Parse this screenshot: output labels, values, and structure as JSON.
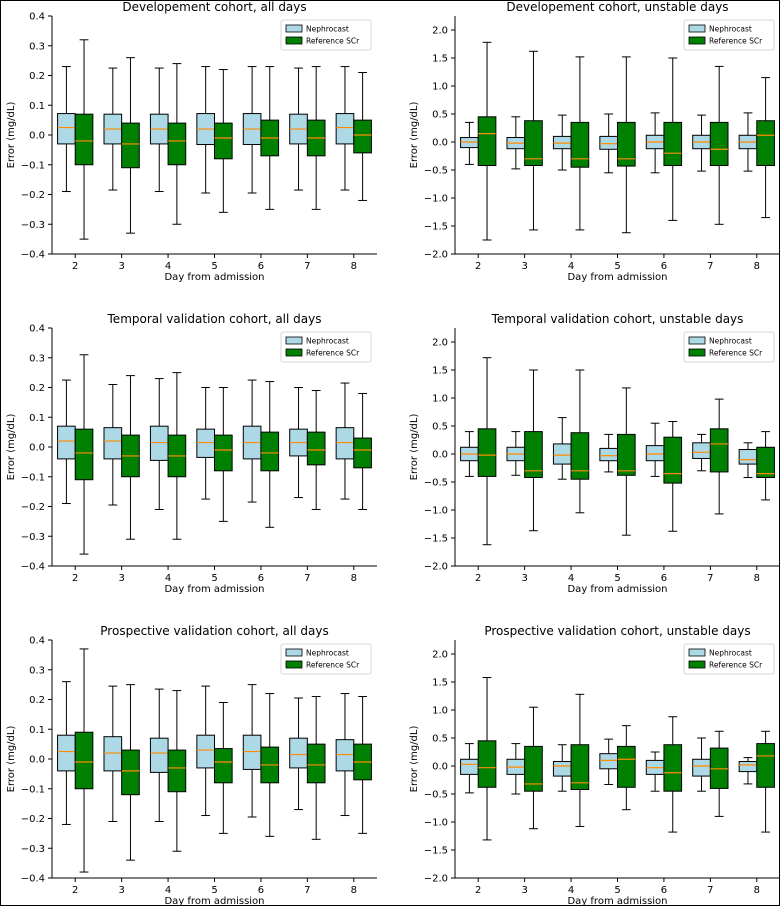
{
  "colors": {
    "nephrocast": "#add8e6",
    "reference": "#008000",
    "median": "#ff8c00",
    "axis": "#000000"
  },
  "legend_labels": [
    "Nephrocast",
    "Reference SCr"
  ],
  "chart_data": [
    {
      "type": "boxplot",
      "title": "Developement cohort, all days",
      "xlabel": "Day from admission",
      "ylabel": "Error (mg/dL)",
      "ylim": [
        -0.4,
        0.4
      ],
      "yticks": [
        -0.4,
        -0.3,
        -0.2,
        -0.1,
        0.0,
        0.1,
        0.2,
        0.3,
        0.4
      ],
      "categories": [
        "2",
        "3",
        "4",
        "5",
        "6",
        "7",
        "8"
      ],
      "legend_position": "top-right",
      "series": [
        {
          "name": "Nephrocast",
          "boxes": [
            {
              "whislo": -0.19,
              "q1": -0.03,
              "med": 0.025,
              "q3": 0.072,
              "whishi": 0.23
            },
            {
              "whislo": -0.185,
              "q1": -0.03,
              "med": 0.02,
              "q3": 0.07,
              "whishi": 0.225
            },
            {
              "whislo": -0.19,
              "q1": -0.03,
              "med": 0.02,
              "q3": 0.07,
              "whishi": 0.225
            },
            {
              "whislo": -0.195,
              "q1": -0.032,
              "med": 0.02,
              "q3": 0.072,
              "whishi": 0.23
            },
            {
              "whislo": -0.195,
              "q1": -0.032,
              "med": 0.02,
              "q3": 0.072,
              "whishi": 0.23
            },
            {
              "whislo": -0.185,
              "q1": -0.03,
              "med": 0.02,
              "q3": 0.07,
              "whishi": 0.225
            },
            {
              "whislo": -0.185,
              "q1": -0.03,
              "med": 0.025,
              "q3": 0.072,
              "whishi": 0.23
            }
          ]
        },
        {
          "name": "Reference SCr",
          "boxes": [
            {
              "whislo": -0.35,
              "q1": -0.1,
              "med": -0.02,
              "q3": 0.07,
              "whishi": 0.32
            },
            {
              "whislo": -0.33,
              "q1": -0.11,
              "med": -0.03,
              "q3": 0.04,
              "whishi": 0.26
            },
            {
              "whislo": -0.3,
              "q1": -0.1,
              "med": -0.02,
              "q3": 0.04,
              "whishi": 0.24
            },
            {
              "whislo": -0.26,
              "q1": -0.08,
              "med": -0.01,
              "q3": 0.04,
              "whishi": 0.22
            },
            {
              "whislo": -0.25,
              "q1": -0.07,
              "med": -0.01,
              "q3": 0.05,
              "whishi": 0.23
            },
            {
              "whislo": -0.25,
              "q1": -0.07,
              "med": -0.01,
              "q3": 0.05,
              "whishi": 0.23
            },
            {
              "whislo": -0.22,
              "q1": -0.06,
              "med": 0.0,
              "q3": 0.05,
              "whishi": 0.21
            }
          ]
        }
      ]
    },
    {
      "type": "boxplot",
      "title": "Developement cohort, unstable days",
      "xlabel": "Day from admission",
      "ylabel": "Error (mg/dL)",
      "ylim": [
        -2.0,
        2.25
      ],
      "yticks": [
        -2.0,
        -1.5,
        -1.0,
        -0.5,
        0.0,
        0.5,
        1.0,
        1.5,
        2.0
      ],
      "categories": [
        "2",
        "3",
        "4",
        "5",
        "6",
        "7",
        "8"
      ],
      "legend_position": "top-right",
      "series": [
        {
          "name": "Nephrocast",
          "boxes": [
            {
              "whislo": -0.4,
              "q1": -0.1,
              "med": 0.0,
              "q3": 0.08,
              "whishi": 0.35
            },
            {
              "whislo": -0.48,
              "q1": -0.12,
              "med": -0.02,
              "q3": 0.08,
              "whishi": 0.45
            },
            {
              "whislo": -0.5,
              "q1": -0.12,
              "med": -0.02,
              "q3": 0.1,
              "whishi": 0.48
            },
            {
              "whislo": -0.55,
              "q1": -0.13,
              "med": -0.03,
              "q3": 0.1,
              "whishi": 0.5
            },
            {
              "whislo": -0.55,
              "q1": -0.12,
              "med": 0.0,
              "q3": 0.12,
              "whishi": 0.52
            },
            {
              "whislo": -0.52,
              "q1": -0.12,
              "med": 0.0,
              "q3": 0.12,
              "whishi": 0.48
            },
            {
              "whislo": -0.52,
              "q1": -0.12,
              "med": 0.0,
              "q3": 0.12,
              "whishi": 0.52
            }
          ]
        },
        {
          "name": "Reference SCr",
          "boxes": [
            {
              "whislo": -1.75,
              "q1": -0.42,
              "med": 0.15,
              "q3": 0.45,
              "whishi": 1.78
            },
            {
              "whislo": -1.57,
              "q1": -0.42,
              "med": -0.3,
              "q3": 0.38,
              "whishi": 1.62
            },
            {
              "whislo": -1.57,
              "q1": -0.45,
              "med": -0.3,
              "q3": 0.35,
              "whishi": 1.52
            },
            {
              "whislo": -1.62,
              "q1": -0.43,
              "med": -0.3,
              "q3": 0.35,
              "whishi": 1.52
            },
            {
              "whislo": -1.4,
              "q1": -0.42,
              "med": -0.2,
              "q3": 0.35,
              "whishi": 1.5
            },
            {
              "whislo": -1.47,
              "q1": -0.42,
              "med": -0.13,
              "q3": 0.35,
              "whishi": 1.35
            },
            {
              "whislo": -1.35,
              "q1": -0.42,
              "med": 0.12,
              "q3": 0.38,
              "whishi": 1.15
            }
          ]
        }
      ]
    },
    {
      "type": "boxplot",
      "title": "Temporal validation cohort, all days",
      "xlabel": "Day from admission",
      "ylabel": "Error (mg/dL)",
      "ylim": [
        -0.4,
        0.4
      ],
      "yticks": [
        -0.4,
        -0.3,
        -0.2,
        -0.1,
        0.0,
        0.1,
        0.2,
        0.3,
        0.4
      ],
      "categories": [
        "2",
        "3",
        "4",
        "5",
        "6",
        "7",
        "8"
      ],
      "legend_position": "top-right",
      "series": [
        {
          "name": "Nephrocast",
          "boxes": [
            {
              "whislo": -0.19,
              "q1": -0.04,
              "med": 0.02,
              "q3": 0.07,
              "whishi": 0.225
            },
            {
              "whislo": -0.195,
              "q1": -0.04,
              "med": 0.02,
              "q3": 0.065,
              "whishi": 0.21
            },
            {
              "whislo": -0.21,
              "q1": -0.045,
              "med": 0.015,
              "q3": 0.07,
              "whishi": 0.23
            },
            {
              "whislo": -0.175,
              "q1": -0.035,
              "med": 0.015,
              "q3": 0.06,
              "whishi": 0.2
            },
            {
              "whislo": -0.185,
              "q1": -0.04,
              "med": 0.015,
              "q3": 0.07,
              "whishi": 0.225
            },
            {
              "whislo": -0.17,
              "q1": -0.03,
              "med": 0.015,
              "q3": 0.06,
              "whishi": 0.2
            },
            {
              "whislo": -0.175,
              "q1": -0.04,
              "med": 0.015,
              "q3": 0.065,
              "whishi": 0.215
            }
          ]
        },
        {
          "name": "Reference SCr",
          "boxes": [
            {
              "whislo": -0.36,
              "q1": -0.11,
              "med": -0.02,
              "q3": 0.06,
              "whishi": 0.31
            },
            {
              "whislo": -0.31,
              "q1": -0.1,
              "med": -0.03,
              "q3": 0.04,
              "whishi": 0.24
            },
            {
              "whislo": -0.31,
              "q1": -0.1,
              "med": -0.03,
              "q3": 0.04,
              "whishi": 0.25
            },
            {
              "whislo": -0.25,
              "q1": -0.08,
              "med": -0.01,
              "q3": 0.04,
              "whishi": 0.2
            },
            {
              "whislo": -0.27,
              "q1": -0.08,
              "med": -0.02,
              "q3": 0.05,
              "whishi": 0.22
            },
            {
              "whislo": -0.21,
              "q1": -0.06,
              "med": -0.01,
              "q3": 0.05,
              "whishi": 0.19
            },
            {
              "whislo": -0.21,
              "q1": -0.07,
              "med": -0.01,
              "q3": 0.03,
              "whishi": 0.18
            }
          ]
        }
      ]
    },
    {
      "type": "boxplot",
      "title": "Temporal validation cohort, unstable days",
      "xlabel": "Day from admission",
      "ylabel": "Error (mg/dL)",
      "ylim": [
        -2.0,
        2.25
      ],
      "yticks": [
        -2.0,
        -1.5,
        -1.0,
        -0.5,
        0.0,
        0.5,
        1.0,
        1.5,
        2.0
      ],
      "categories": [
        "2",
        "3",
        "4",
        "5",
        "6",
        "7",
        "8"
      ],
      "legend_position": "top-right",
      "series": [
        {
          "name": "Nephrocast",
          "boxes": [
            {
              "whislo": -0.4,
              "q1": -0.12,
              "med": 0.0,
              "q3": 0.12,
              "whishi": 0.4
            },
            {
              "whislo": -0.38,
              "q1": -0.12,
              "med": 0.0,
              "q3": 0.12,
              "whishi": 0.4
            },
            {
              "whislo": -0.45,
              "q1": -0.18,
              "med": -0.02,
              "q3": 0.18,
              "whishi": 0.65
            },
            {
              "whislo": -0.32,
              "q1": -0.12,
              "med": -0.03,
              "q3": 0.1,
              "whishi": 0.35
            },
            {
              "whislo": -0.4,
              "q1": -0.12,
              "med": 0.0,
              "q3": 0.15,
              "whishi": 0.55
            },
            {
              "whislo": -0.3,
              "q1": -0.08,
              "med": 0.03,
              "q3": 0.2,
              "whishi": 0.35
            },
            {
              "whislo": -0.42,
              "q1": -0.18,
              "med": -0.1,
              "q3": 0.08,
              "whishi": 0.2
            }
          ]
        },
        {
          "name": "Reference SCr",
          "boxes": [
            {
              "whislo": -1.62,
              "q1": -0.4,
              "med": -0.02,
              "q3": 0.45,
              "whishi": 1.72
            },
            {
              "whislo": -1.37,
              "q1": -0.42,
              "med": -0.3,
              "q3": 0.4,
              "whishi": 1.5
            },
            {
              "whislo": -1.05,
              "q1": -0.45,
              "med": -0.3,
              "q3": 0.38,
              "whishi": 1.5
            },
            {
              "whislo": -1.45,
              "q1": -0.38,
              "med": -0.3,
              "q3": 0.35,
              "whishi": 1.18
            },
            {
              "whislo": -1.38,
              "q1": -0.52,
              "med": -0.35,
              "q3": 0.3,
              "whishi": 0.58
            },
            {
              "whislo": -1.07,
              "q1": -0.32,
              "med": 0.18,
              "q3": 0.45,
              "whishi": 0.98
            },
            {
              "whislo": -0.82,
              "q1": -0.42,
              "med": -0.35,
              "q3": 0.12,
              "whishi": 0.4
            }
          ]
        }
      ]
    },
    {
      "type": "boxplot",
      "title": "Prospective validation cohort, all days",
      "xlabel": "Day from admission",
      "ylabel": "Error (mg/dL)",
      "ylim": [
        -0.4,
        0.4
      ],
      "yticks": [
        -0.4,
        -0.3,
        -0.2,
        -0.1,
        0.0,
        0.1,
        0.2,
        0.3,
        0.4
      ],
      "categories": [
        "2",
        "3",
        "4",
        "5",
        "6",
        "7",
        "8"
      ],
      "legend_position": "top-right",
      "series": [
        {
          "name": "Nephrocast",
          "boxes": [
            {
              "whislo": -0.22,
              "q1": -0.04,
              "med": 0.025,
              "q3": 0.08,
              "whishi": 0.26
            },
            {
              "whislo": -0.21,
              "q1": -0.04,
              "med": 0.02,
              "q3": 0.075,
              "whishi": 0.245
            },
            {
              "whislo": -0.21,
              "q1": -0.045,
              "med": 0.02,
              "q3": 0.07,
              "whishi": 0.235
            },
            {
              "whislo": -0.19,
              "q1": -0.03,
              "med": 0.03,
              "q3": 0.08,
              "whishi": 0.245
            },
            {
              "whislo": -0.195,
              "q1": -0.035,
              "med": 0.025,
              "q3": 0.08,
              "whishi": 0.25
            },
            {
              "whislo": -0.17,
              "q1": -0.03,
              "med": 0.015,
              "q3": 0.07,
              "whishi": 0.205
            },
            {
              "whislo": -0.19,
              "q1": -0.04,
              "med": 0.015,
              "q3": 0.065,
              "whishi": 0.22
            }
          ]
        },
        {
          "name": "Reference SCr",
          "boxes": [
            {
              "whislo": -0.38,
              "q1": -0.1,
              "med": -0.01,
              "q3": 0.09,
              "whishi": 0.37
            },
            {
              "whislo": -0.34,
              "q1": -0.12,
              "med": -0.04,
              "q3": 0.03,
              "whishi": 0.25
            },
            {
              "whislo": -0.31,
              "q1": -0.11,
              "med": -0.03,
              "q3": 0.03,
              "whishi": 0.23
            },
            {
              "whislo": -0.25,
              "q1": -0.08,
              "med": -0.01,
              "q3": 0.035,
              "whishi": 0.19
            },
            {
              "whislo": -0.26,
              "q1": -0.08,
              "med": -0.02,
              "q3": 0.04,
              "whishi": 0.22
            },
            {
              "whislo": -0.27,
              "q1": -0.08,
              "med": -0.02,
              "q3": 0.05,
              "whishi": 0.21
            },
            {
              "whislo": -0.25,
              "q1": -0.07,
              "med": -0.01,
              "q3": 0.05,
              "whishi": 0.21
            }
          ]
        }
      ]
    },
    {
      "type": "boxplot",
      "title": "Prospective validation cohort, unstable days",
      "xlabel": "Day from admission",
      "ylabel": "Error (mg/dL)",
      "ylim": [
        -2.0,
        2.25
      ],
      "yticks": [
        -2.0,
        -1.5,
        -1.0,
        -0.5,
        0.0,
        0.5,
        1.0,
        1.5,
        2.0
      ],
      "categories": [
        "2",
        "3",
        "4",
        "5",
        "6",
        "7",
        "8"
      ],
      "legend_position": "top-right",
      "series": [
        {
          "name": "Nephrocast",
          "boxes": [
            {
              "whislo": -0.48,
              "q1": -0.15,
              "med": 0.03,
              "q3": 0.12,
              "whishi": 0.4
            },
            {
              "whislo": -0.5,
              "q1": -0.15,
              "med": -0.02,
              "q3": 0.12,
              "whishi": 0.4
            },
            {
              "whislo": -0.45,
              "q1": -0.18,
              "med": 0.0,
              "q3": 0.08,
              "whishi": 0.38
            },
            {
              "whislo": -0.33,
              "q1": -0.05,
              "med": 0.1,
              "q3": 0.22,
              "whishi": 0.48
            },
            {
              "whislo": -0.45,
              "q1": -0.15,
              "med": -0.03,
              "q3": 0.1,
              "whishi": 0.25
            },
            {
              "whislo": -0.45,
              "q1": -0.18,
              "med": 0.0,
              "q3": 0.12,
              "whishi": 0.5
            },
            {
              "whislo": -0.32,
              "q1": -0.1,
              "med": 0.02,
              "q3": 0.08,
              "whishi": 0.15
            }
          ]
        },
        {
          "name": "Reference SCr",
          "boxes": [
            {
              "whislo": -1.32,
              "q1": -0.38,
              "med": -0.03,
              "q3": 0.45,
              "whishi": 1.58
            },
            {
              "whislo": -1.12,
              "q1": -0.45,
              "med": -0.32,
              "q3": 0.35,
              "whishi": 1.05
            },
            {
              "whislo": -1.08,
              "q1": -0.42,
              "med": -0.3,
              "q3": 0.38,
              "whishi": 1.28
            },
            {
              "whislo": -0.78,
              "q1": -0.38,
              "med": 0.12,
              "q3": 0.35,
              "whishi": 0.72
            },
            {
              "whislo": -1.18,
              "q1": -0.45,
              "med": -0.12,
              "q3": 0.38,
              "whishi": 0.88
            },
            {
              "whislo": -0.9,
              "q1": -0.4,
              "med": -0.05,
              "q3": 0.32,
              "whishi": 0.62
            },
            {
              "whislo": -1.18,
              "q1": -0.38,
              "med": 0.18,
              "q3": 0.4,
              "whishi": 0.62
            }
          ]
        }
      ]
    }
  ]
}
